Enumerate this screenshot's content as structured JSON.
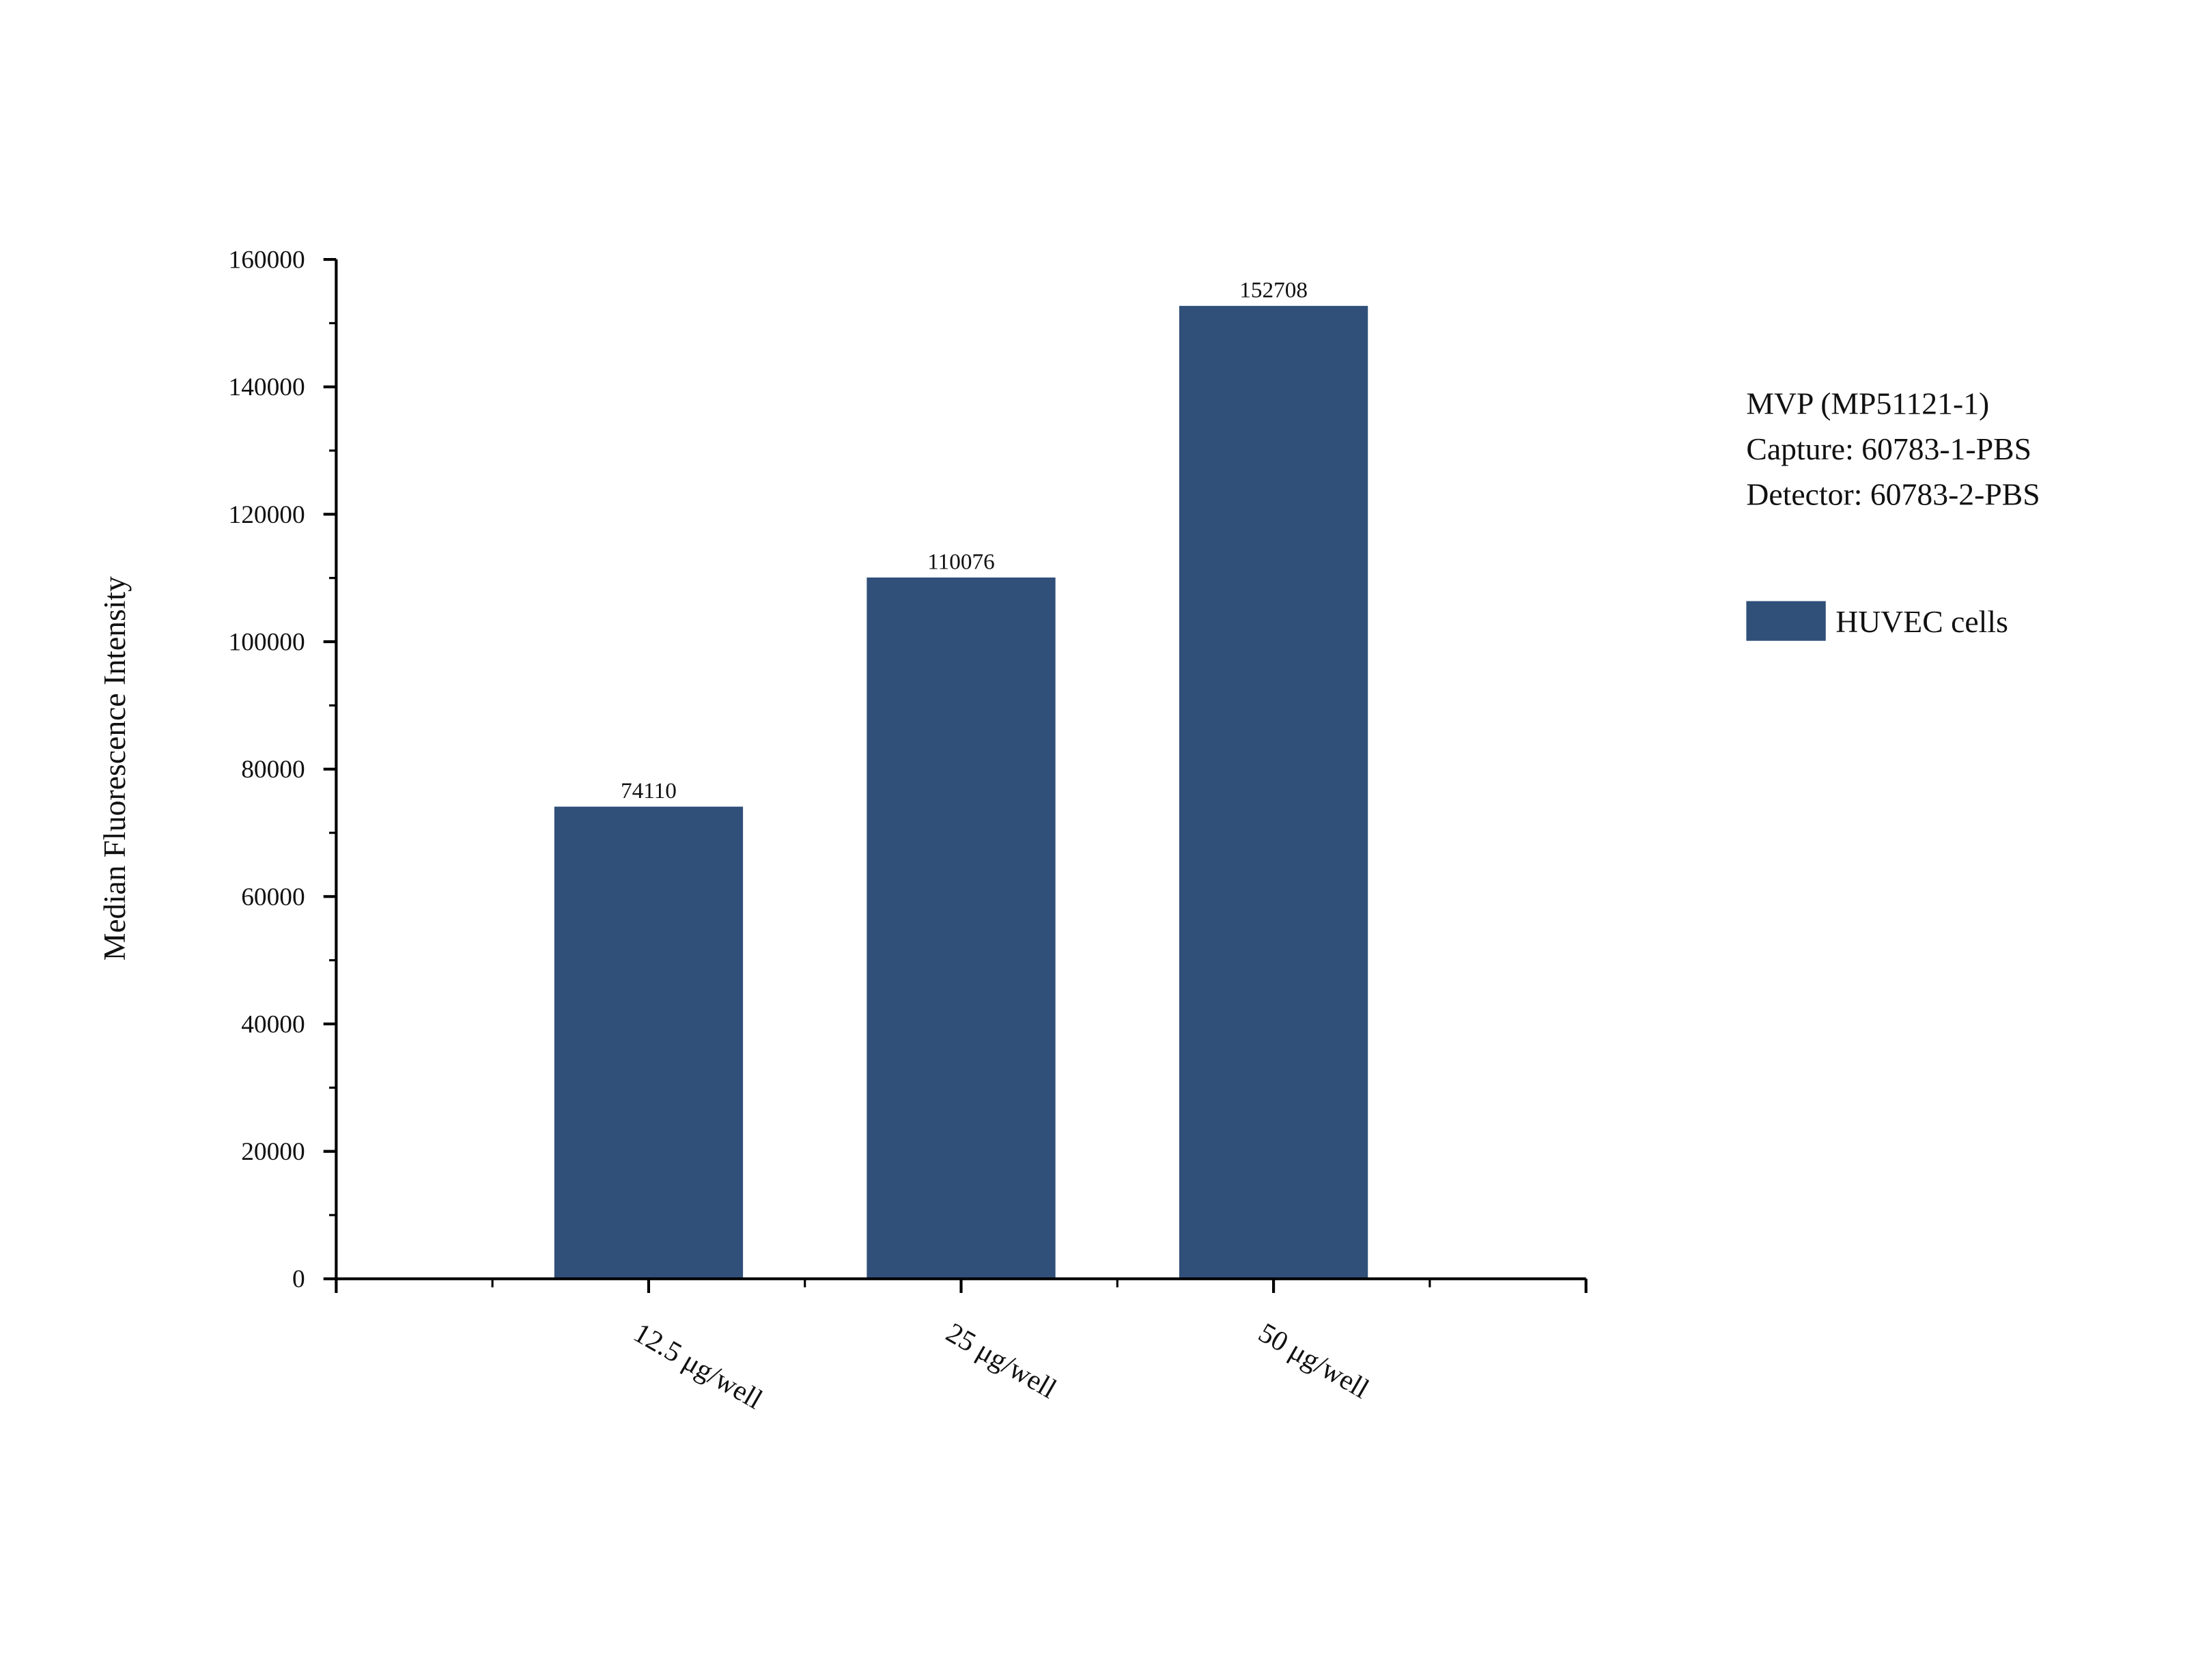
{
  "chart_data": {
    "type": "bar",
    "ylabel": "Median Fluorescence Intensity",
    "annotation": [
      "MVP (MP51121-1)",
      "Capture: 60783-1-PBS",
      "Detector: 60783-2-PBS"
    ],
    "categories": [
      "12.5 μg/well",
      "25 μg/well",
      "50 μg/well"
    ],
    "series": [
      {
        "name": "HUVEC cells",
        "color": "#30507a",
        "values": [
          74110,
          110076,
          152708
        ]
      }
    ],
    "ylim": [
      0,
      160000
    ],
    "yticks": [
      0,
      20000,
      40000,
      60000,
      80000,
      100000,
      120000,
      140000,
      160000
    ]
  }
}
